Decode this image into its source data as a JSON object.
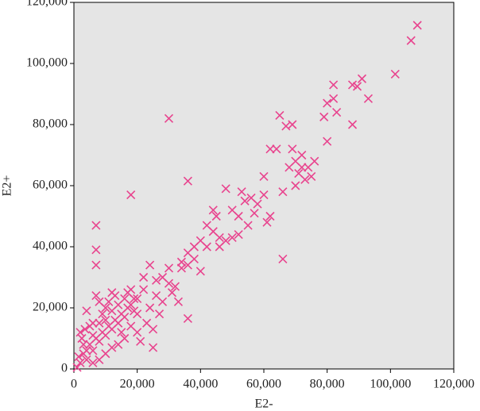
{
  "chart_data": {
    "type": "scatter",
    "x_label": "E2-",
    "y_label": "E2+",
    "xlim": [
      0,
      120000
    ],
    "ylim": [
      0,
      120000
    ],
    "xticks": [
      0,
      {
        "value": 20000,
        "label": "20,000"
      },
      {
        "value": 40000,
        "label": "40,000"
      },
      {
        "value": 60000,
        "label": "60,000"
      },
      {
        "value": 80000,
        "label": "80,000"
      },
      {
        "value": 100000,
        "label": "100,000"
      },
      {
        "value": 120000,
        "label": "120,000"
      }
    ],
    "yticks": [
      0,
      {
        "value": 20000,
        "label": "20,000"
      },
      {
        "value": 40000,
        "label": "40,000"
      },
      {
        "value": 60000,
        "label": "60,000"
      },
      {
        "value": 80000,
        "label": "80,000"
      },
      {
        "value": 100000,
        "label": "100,000"
      },
      {
        "value": 120000,
        "label": "120,000"
      }
    ],
    "color": "#e8448e",
    "background": "#e5e5e5",
    "x": [
      108500,
      106500,
      101500,
      91000,
      89500,
      88000,
      93000,
      88000,
      82000,
      82000,
      80000,
      83000,
      79000,
      80000,
      65000,
      67000,
      69000,
      30000,
      62000,
      64000,
      60000,
      36000,
      18000,
      66000,
      7000,
      7000,
      7000,
      36000,
      25000,
      70000,
      72000,
      74000,
      71000,
      73000,
      75000,
      68000,
      69000,
      66000,
      70000,
      72000,
      76000,
      48000,
      50000,
      52000,
      54000,
      56000,
      58000,
      60000,
      62000,
      55000,
      50000,
      48000,
      46000,
      52000,
      57000,
      61000,
      45000,
      44000,
      53000,
      34000,
      36000,
      38000,
      40000,
      42000,
      44000,
      40000,
      38000,
      42000,
      36000,
      34000,
      46000,
      30000,
      32000,
      28000,
      26000,
      30000,
      24000,
      22000,
      28000,
      33000,
      31000,
      26000,
      24000,
      20000,
      22000,
      27000,
      23000,
      25000,
      21000,
      20000,
      2000,
      3000,
      4000,
      5000,
      6000,
      7000,
      8000,
      9000,
      10000,
      11000,
      12000,
      13000,
      14000,
      15000,
      16000,
      17000,
      18000,
      19000,
      1000,
      1500,
      2500,
      3500,
      4000,
      6000,
      7000,
      8000,
      10000,
      12000,
      14000,
      10000,
      8000,
      6000,
      16000,
      18000,
      15000,
      12000,
      5000,
      3000,
      9000,
      11000,
      13000,
      17000,
      19000,
      20000,
      2000,
      4000,
      6000,
      8000,
      10000,
      12000,
      14000,
      16000,
      18000
    ],
    "y": [
      112500,
      107500,
      96500,
      95000,
      92500,
      93000,
      88500,
      80000,
      93000,
      88500,
      87000,
      84000,
      82500,
      74500,
      83000,
      79500,
      80000,
      82000,
      72000,
      72000,
      63000,
      61500,
      57000,
      36000,
      47000,
      39000,
      34000,
      16500,
      7000,
      68000,
      70000,
      66000,
      64000,
      62000,
      63000,
      66000,
      72000,
      58000,
      60000,
      66000,
      68000,
      59000,
      52000,
      50000,
      55000,
      56000,
      54000,
      57000,
      50000,
      47000,
      43000,
      42000,
      43000,
      44000,
      51000,
      48000,
      50000,
      52000,
      58000,
      35000,
      38000,
      36000,
      32000,
      40000,
      45000,
      42000,
      40000,
      47000,
      34000,
      33000,
      40000,
      28000,
      27000,
      30000,
      29000,
      33000,
      34000,
      30000,
      22000,
      22000,
      25000,
      24000,
      20000,
      23000,
      26000,
      18000,
      15000,
      13000,
      9000,
      12000,
      2000,
      5000,
      3000,
      8000,
      6000,
      10000,
      9000,
      12000,
      11000,
      14000,
      13000,
      16000,
      15000,
      18000,
      17000,
      20000,
      21000,
      19000,
      500,
      4000,
      10000,
      13000,
      19000,
      15000,
      24000,
      22000,
      20000,
      25000,
      8000,
      5000,
      3000,
      2000,
      10000,
      14000,
      12000,
      7000,
      14000,
      8000,
      18000,
      22000,
      24000,
      25000,
      23000,
      18000,
      12000,
      6000,
      11000,
      15000,
      16000,
      19000,
      21000,
      23000,
      26000
    ]
  }
}
